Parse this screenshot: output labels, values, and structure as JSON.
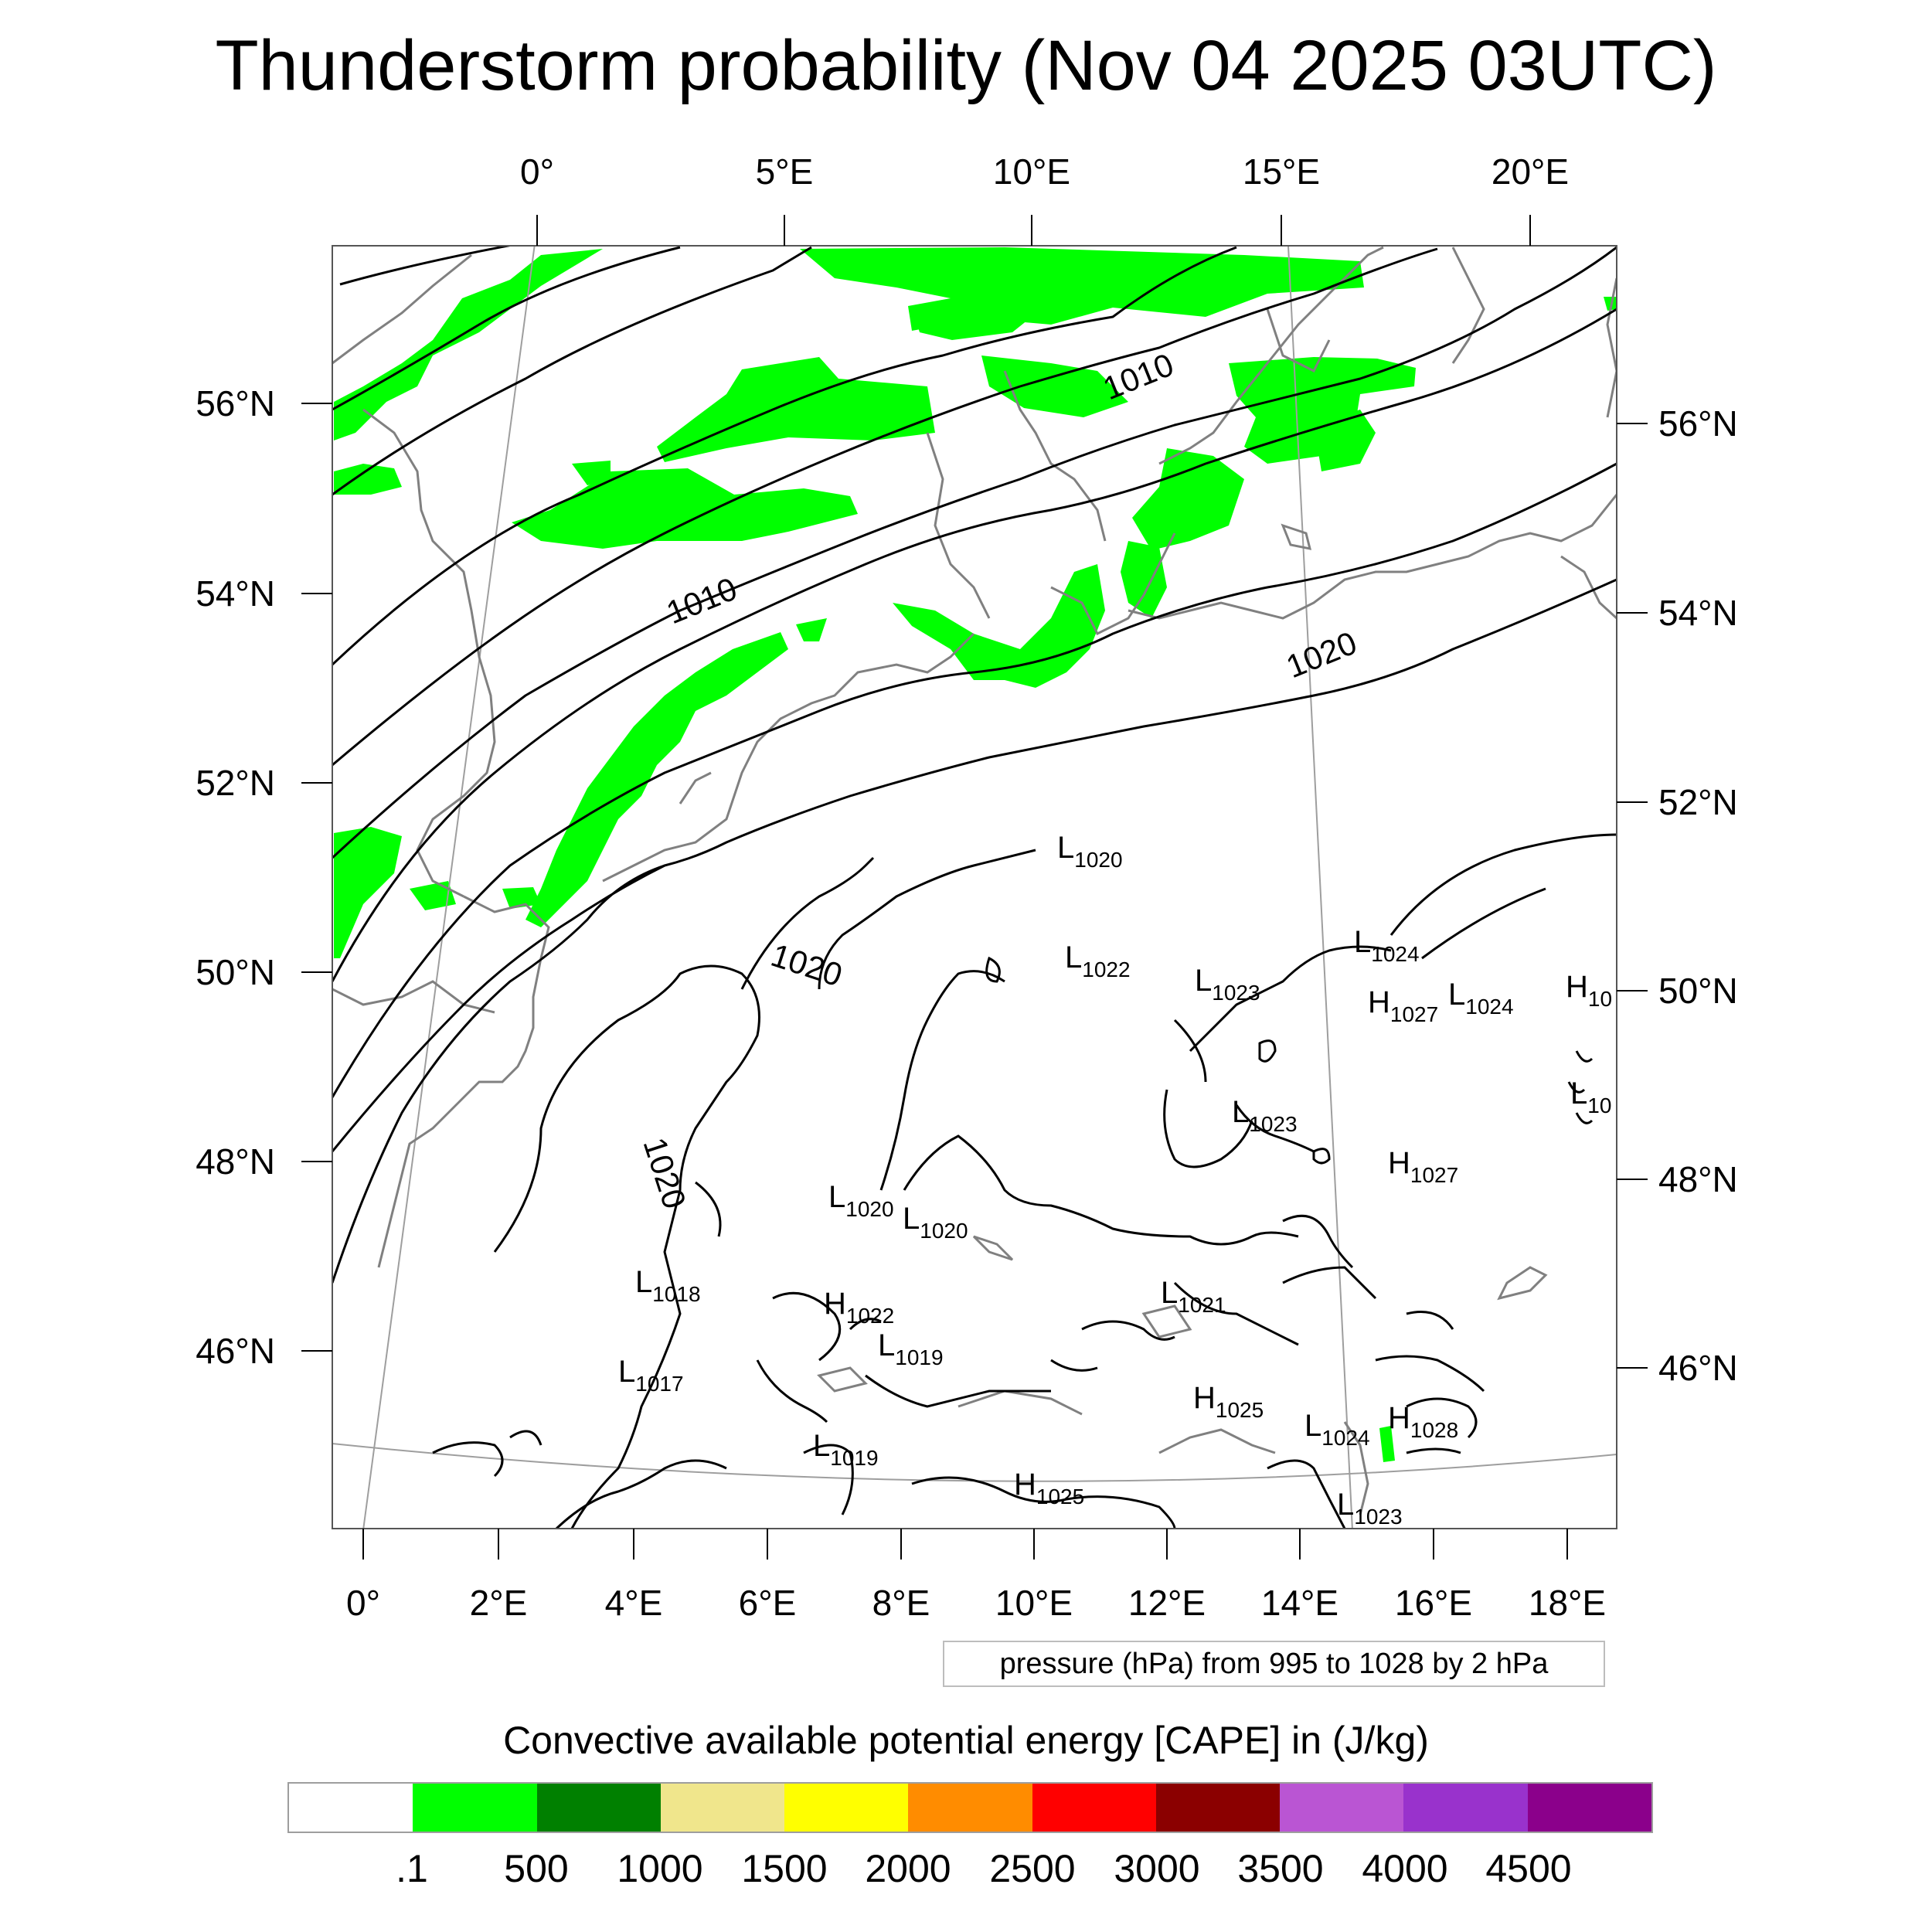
{
  "title": "Thunderstorm probability (Nov 04 2025 03UTC)",
  "map": {
    "top_lon_labels": [
      "0°",
      "5°E",
      "10°E",
      "15°E",
      "20°E"
    ],
    "bottom_lon_labels": [
      "0°",
      "2°E",
      "4°E",
      "6°E",
      "8°E",
      "10°E",
      "12°E",
      "14°E",
      "16°E",
      "18°E"
    ],
    "left_lat_labels": [
      "56°N",
      "54°N",
      "52°N",
      "50°N",
      "48°N",
      "46°N"
    ],
    "right_lat_labels": [
      "56°N",
      "54°N",
      "52°N",
      "50°N",
      "48°N",
      "46°N"
    ],
    "isobar_labels": [
      "1010",
      "1010",
      "1020",
      "1020",
      "1020"
    ],
    "pressure_centers": [
      {
        "type": "L",
        "value": "1020"
      },
      {
        "type": "L",
        "value": "1022"
      },
      {
        "type": "L",
        "value": "1023"
      },
      {
        "type": "L",
        "value": "1024"
      },
      {
        "type": "H",
        "value": "1027"
      },
      {
        "type": "L",
        "value": "1024"
      },
      {
        "type": "H",
        "value": "10"
      },
      {
        "type": "L",
        "value": "10"
      },
      {
        "type": "L",
        "value": "1023"
      },
      {
        "type": "H",
        "value": "1027"
      },
      {
        "type": "L",
        "value": "1020"
      },
      {
        "type": "L",
        "value": "1020"
      },
      {
        "type": "L",
        "value": "1018"
      },
      {
        "type": "H",
        "value": "1022"
      },
      {
        "type": "L",
        "value": "1021"
      },
      {
        "type": "L",
        "value": "1019"
      },
      {
        "type": "L",
        "value": "1017"
      },
      {
        "type": "H",
        "value": "1025"
      },
      {
        "type": "L",
        "value": "1024"
      },
      {
        "type": "H",
        "value": "1028"
      },
      {
        "type": "L",
        "value": "1019"
      },
      {
        "type": "H",
        "value": "1025"
      },
      {
        "type": "L",
        "value": "1023"
      }
    ],
    "colors": {
      "cape_fill": "#00ff00",
      "coastline": "#808080",
      "isobar": "#000000"
    }
  },
  "info_box": "pressure (hPa) from 995 to 1028 by 2 hPa",
  "colorbar": {
    "title": "Convective available potential energy [CAPE] in (J/kg)",
    "colors": [
      "#ffffff",
      "#00ff00",
      "#008000",
      "#f0e68c",
      "#ffff00",
      "#ff8c00",
      "#ff0000",
      "#8b0000",
      "#ba55d3",
      "#9932cc",
      "#8b008b"
    ],
    "labels": [
      ".1",
      "500",
      "1000",
      "1500",
      "2000",
      "2500",
      "3000",
      "3500",
      "4000",
      "4500"
    ]
  }
}
